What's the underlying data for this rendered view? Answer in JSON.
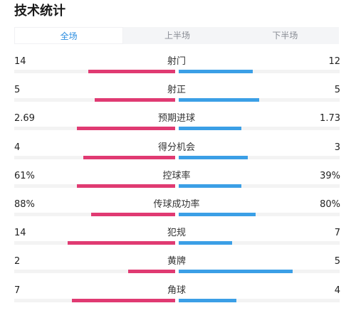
{
  "title": "技术统计",
  "tabs": [
    {
      "label": "全场",
      "active": true
    },
    {
      "label": "上半场",
      "active": false
    },
    {
      "label": "下半场",
      "active": false
    }
  ],
  "colors": {
    "home": "#e03a72",
    "away": "#3b9fe6",
    "active_tab": "#2b8de0"
  },
  "stats": [
    {
      "label": "射门",
      "home": "14",
      "away": "12",
      "home_share": 0.54,
      "away_share": 0.46
    },
    {
      "label": "射正",
      "home": "5",
      "away": "5",
      "home_share": 0.5,
      "away_share": 0.5
    },
    {
      "label": "预期进球",
      "home": "2.69",
      "away": "1.73",
      "home_share": 0.61,
      "away_share": 0.39
    },
    {
      "label": "得分机会",
      "home": "4",
      "away": "3",
      "home_share": 0.57,
      "away_share": 0.43
    },
    {
      "label": "控球率",
      "home": "61%",
      "away": "39%",
      "home_share": 0.61,
      "away_share": 0.39
    },
    {
      "label": "传球成功率",
      "home": "88%",
      "away": "80%",
      "home_share": 0.52,
      "away_share": 0.48
    },
    {
      "label": "犯规",
      "home": "14",
      "away": "7",
      "home_share": 0.67,
      "away_share": 0.33
    },
    {
      "label": "黄牌",
      "home": "2",
      "away": "5",
      "home_share": 0.29,
      "away_share": 0.71
    },
    {
      "label": "角球",
      "home": "7",
      "away": "4",
      "home_share": 0.64,
      "away_share": 0.36
    }
  ]
}
